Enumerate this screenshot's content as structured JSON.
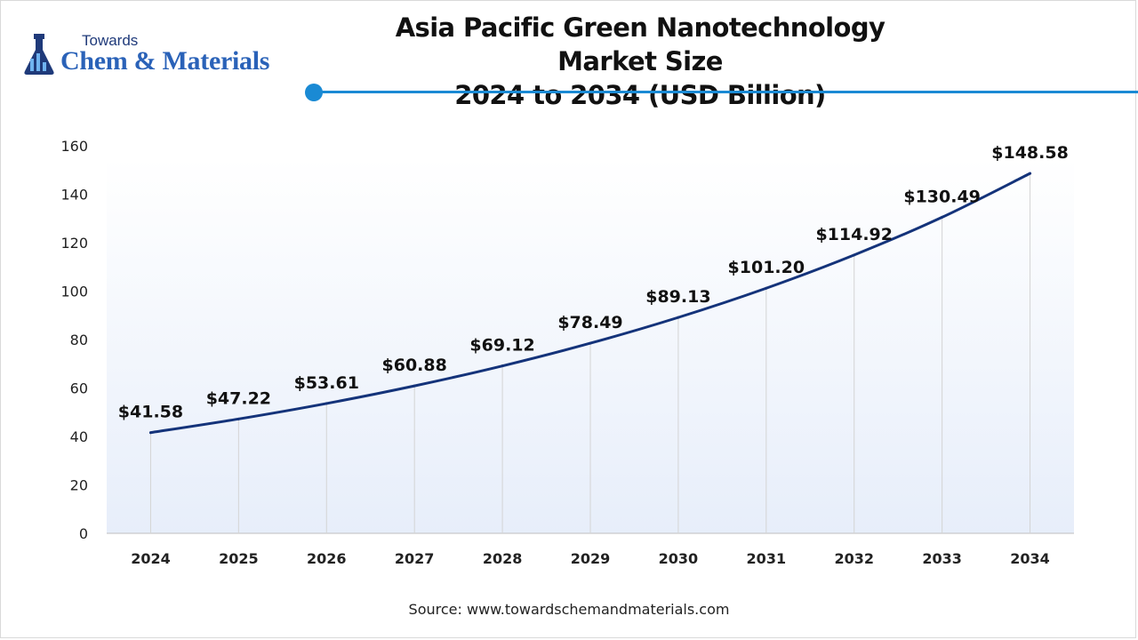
{
  "brand": {
    "small": "Towards",
    "big": "Chem & Materials"
  },
  "title": {
    "line1": "Asia Pacific Green Nanotechnology Market Size",
    "line2": "2024 to 2034 (USD Billion)"
  },
  "source": "Source: www.towardschemandmaterials.com",
  "colors": {
    "line": "#14337a",
    "accent": "#1a8ad4",
    "gridline": "#d4d4d4",
    "plot_bg_top": "#ffffff",
    "plot_bg_bottom": "#e7eefa"
  },
  "chart_data": {
    "type": "line",
    "title": "Asia Pacific Green Nanotechnology Market Size 2024 to 2034 (USD Billion)",
    "x": [
      "2024",
      "2025",
      "2026",
      "2027",
      "2028",
      "2029",
      "2030",
      "2031",
      "2032",
      "2033",
      "2034"
    ],
    "series": [
      {
        "values": [
          41.58,
          47.22,
          53.61,
          60.88,
          69.12,
          78.49,
          89.13,
          101.2,
          114.92,
          130.49,
          148.58
        ]
      }
    ],
    "data_labels": [
      "$41.58",
      "$47.22",
      "$53.61",
      "$60.88",
      "$69.12",
      "$78.49",
      "$89.13",
      "$101.20",
      "$114.92",
      "$130.49",
      "$148.58"
    ],
    "yticks": [
      0,
      20,
      40,
      60,
      80,
      100,
      120,
      140,
      160
    ],
    "ylim": [
      0,
      160
    ],
    "xlabel": "",
    "ylabel": "",
    "grid": "vertical lines at each year",
    "legend": "none"
  }
}
